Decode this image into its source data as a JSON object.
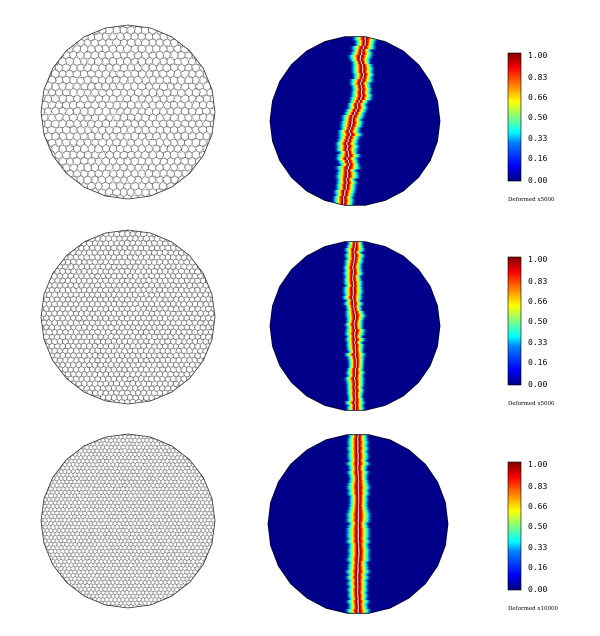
{
  "figure": {
    "rows": [
      {
        "id": "coarse",
        "mesh_label": "",
        "colorbar_ticks": [
          "1.00",
          "0.83",
          "0.66",
          "0.50",
          "0.33",
          "0.16",
          "0.00"
        ],
        "caption": "Deformed x5000"
      },
      {
        "id": "medium",
        "mesh_label": "",
        "colorbar_ticks": [
          "1.00",
          "0.83",
          "0.66",
          "0.50",
          "0.33",
          "0.16",
          "0.00"
        ],
        "caption": "Deformed x5000"
      },
      {
        "id": "fine",
        "mesh_label": "",
        "colorbar_ticks": [
          "1.00",
          "0.83",
          "0.66",
          "0.50",
          "0.33",
          "0.16",
          "0.00"
        ],
        "caption": "Deformed x10000"
      }
    ],
    "colormap": [
      "#00007f",
      "#0000ff",
      "#0080ff",
      "#00ffff",
      "#80ff80",
      "#ffff00",
      "#ff8000",
      "#ff0000",
      "#7f0000"
    ],
    "background_color": "#00008b",
    "mesh_line_color": "#555555"
  }
}
